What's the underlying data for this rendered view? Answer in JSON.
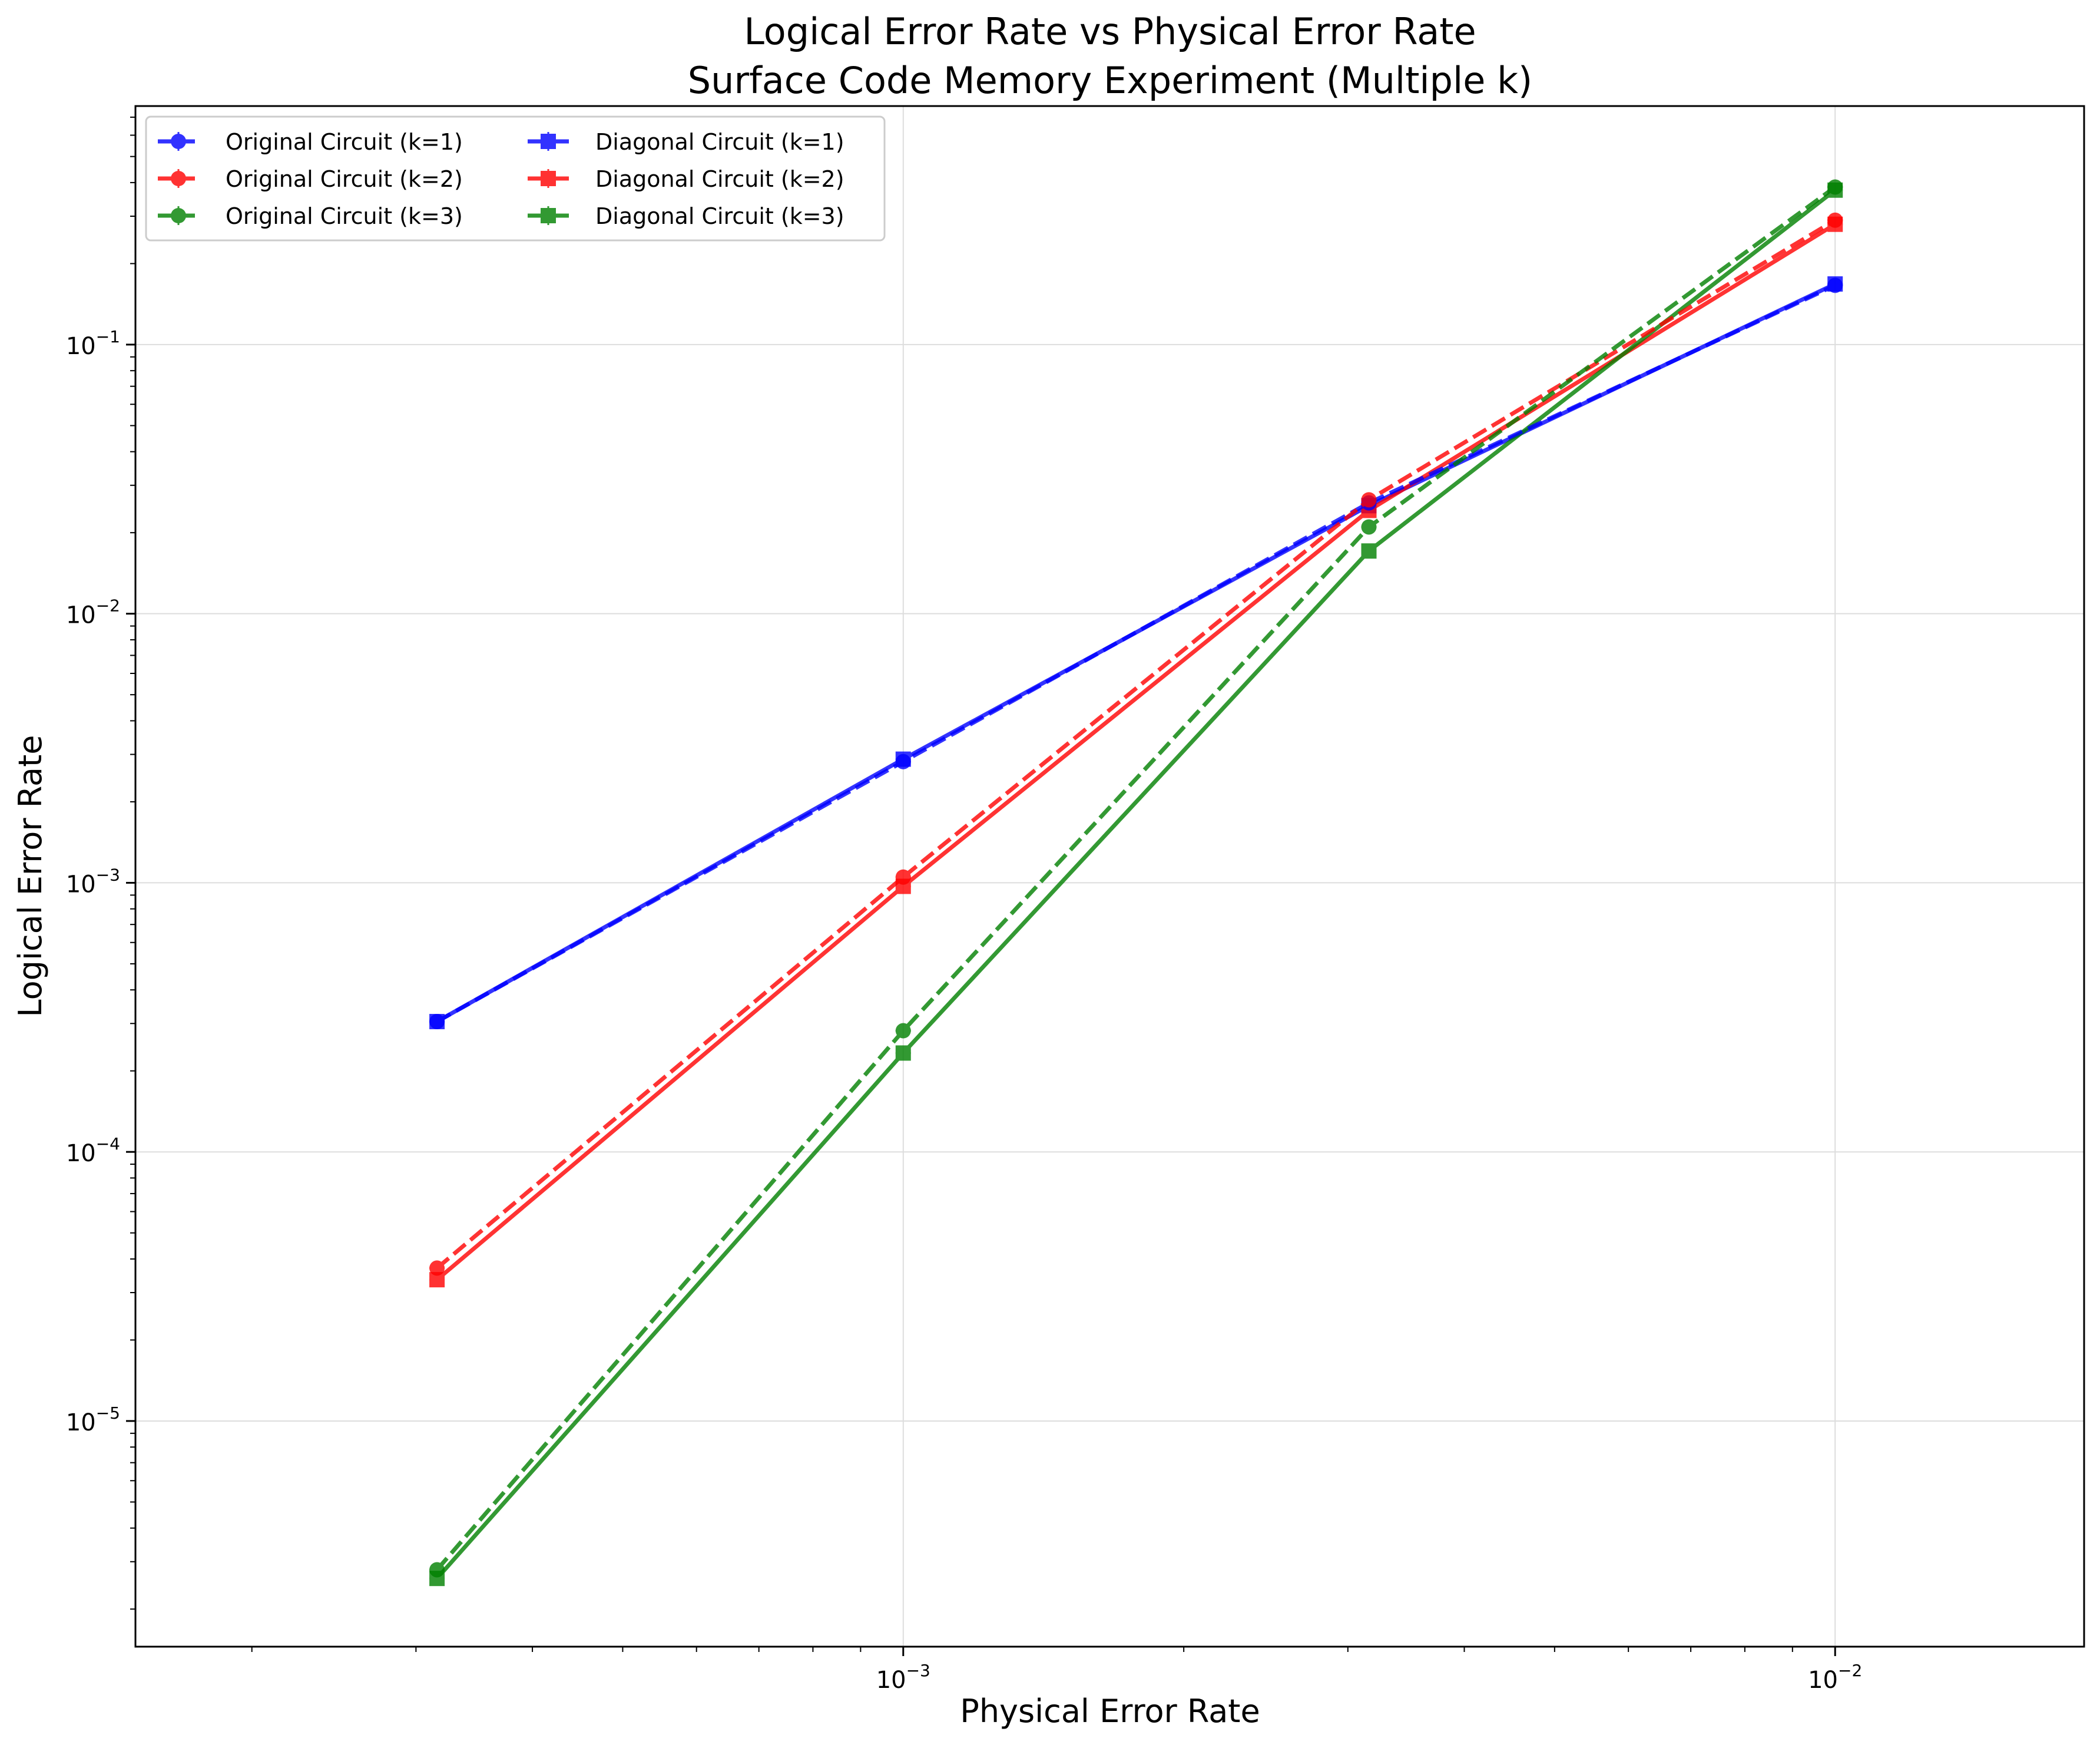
{
  "chart_data": {
    "type": "line",
    "title": "Logical Error Rate vs Physical Error Rate",
    "subtitle": "Surface Code Memory Experiment (Multiple k)",
    "xlabel": "Physical Error Rate",
    "ylabel": "Logical Error Rate",
    "xscale": "log",
    "yscale": "log",
    "xlim": [
      0.00015,
      0.0185
    ],
    "ylim": [
      1.45e-06,
      0.77
    ],
    "grid": true,
    "legend_position": "top-left",
    "x": [
      0.000316,
      0.001,
      0.00316,
      0.01
    ],
    "x_ticks": [
      {
        "value": 0.001,
        "base": "10",
        "exp": "−3"
      },
      {
        "value": 0.01,
        "base": "10",
        "exp": "−2"
      }
    ],
    "y_ticks": [
      {
        "value": 1e-05,
        "base": "10",
        "exp": "−5"
      },
      {
        "value": 0.0001,
        "base": "10",
        "exp": "−4"
      },
      {
        "value": 0.001,
        "base": "10",
        "exp": "−3"
      },
      {
        "value": 0.01,
        "base": "10",
        "exp": "−2"
      },
      {
        "value": 0.1,
        "base": "10",
        "exp": "−1"
      }
    ],
    "series": [
      {
        "name": "Original Circuit (k=1)",
        "color": "#0000ff",
        "marker": "circle",
        "linestyle": "dashed",
        "values": [
          0.000305,
          0.00282,
          0.0258,
          0.166
        ]
      },
      {
        "name": "Original Circuit (k=2)",
        "color": "#ff0000",
        "marker": "circle",
        "linestyle": "dashed",
        "values": [
          3.7e-05,
          0.00105,
          0.0265,
          0.29
        ]
      },
      {
        "name": "Original Circuit (k=3)",
        "color": "#008000",
        "marker": "circle",
        "linestyle": "dashed",
        "values": [
          2.8e-06,
          0.000282,
          0.021,
          0.385
        ]
      },
      {
        "name": "Diagonal Circuit (k=1)",
        "color": "#0000ff",
        "marker": "square",
        "linestyle": "solid",
        "values": [
          0.000305,
          0.00288,
          0.0252,
          0.168
        ]
      },
      {
        "name": "Diagonal Circuit (k=2)",
        "color": "#ff0000",
        "marker": "square",
        "linestyle": "solid",
        "values": [
          3.35e-05,
          0.00097,
          0.0242,
          0.28
        ]
      },
      {
        "name": "Diagonal Circuit (k=3)",
        "color": "#008000",
        "marker": "square",
        "linestyle": "solid",
        "values": [
          2.6e-06,
          0.000233,
          0.0171,
          0.375
        ]
      }
    ]
  }
}
